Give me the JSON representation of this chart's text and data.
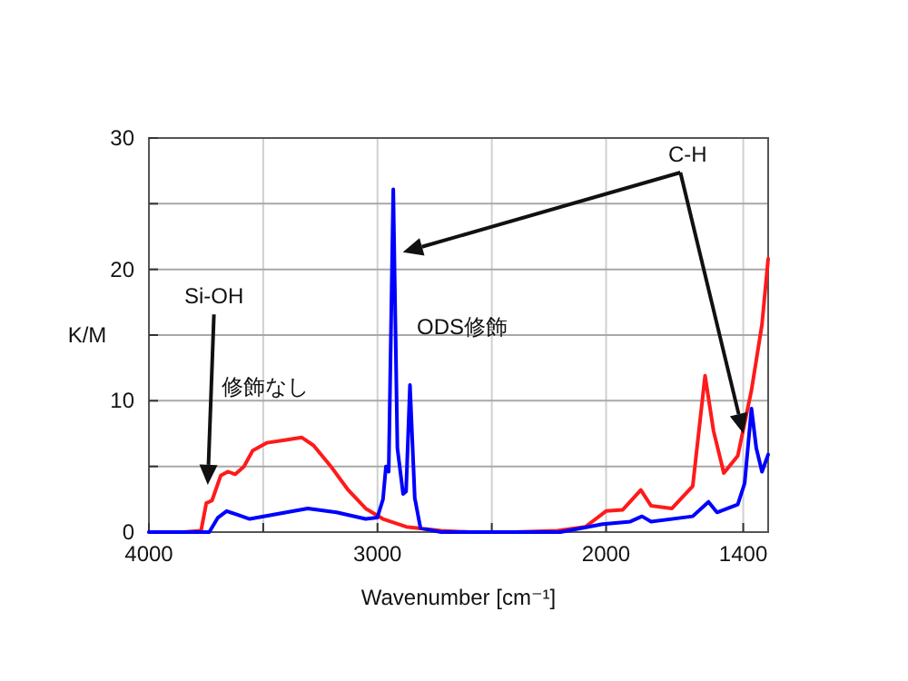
{
  "chart_data": {
    "type": "line",
    "xlabel": "Wavenumber [cm⁻¹]",
    "ylabel": "K/M",
    "xlim": [
      4000,
      1291
    ],
    "xticks": [
      4000,
      {
        "value": 3500,
        "label": null
      },
      3000,
      {
        "value": 2500,
        "label": null
      },
      2000,
      1400
    ],
    "ylim": [
      0,
      30
    ],
    "yticks": [
      0,
      {
        "value": 5,
        "label": null
      },
      10,
      {
        "value": 15,
        "label": null
      },
      20,
      {
        "value": 25,
        "label": null
      },
      30
    ],
    "grid": true,
    "marker": "none",
    "line_style": "solid",
    "series": [
      {
        "name": "修飾なし",
        "color": "#ff1a1a",
        "x": [
          4000,
          3850,
          3772,
          3749,
          3724,
          3686,
          3655,
          3622,
          3584,
          3546,
          3483,
          3407,
          3331,
          3280,
          3204,
          3128,
          3052,
          2976,
          2874,
          2722,
          2593,
          2400,
          2213,
          2091,
          2000,
          1927,
          1848,
          1803,
          1712,
          1621,
          1567,
          1530,
          1485,
          1424,
          1364,
          1318,
          1291
        ],
        "values": [
          0,
          0,
          0.1,
          2.2,
          2.4,
          4.3,
          4.6,
          4.4,
          5.0,
          6.2,
          6.8,
          7.0,
          7.2,
          6.6,
          5.0,
          3.2,
          1.8,
          1.0,
          0.4,
          0.1,
          0,
          0,
          0.1,
          0.4,
          1.6,
          1.7,
          3.2,
          2.0,
          1.8,
          3.5,
          11.9,
          7.7,
          4.5,
          5.8,
          10.8,
          15.8,
          20.8
        ]
      },
      {
        "name": "ODS修飾",
        "color": "#0000ff",
        "x": [
          4000,
          3800,
          3736,
          3698,
          3660,
          3610,
          3559,
          3432,
          3305,
          3179,
          3052,
          3001,
          2976,
          2963,
          2951,
          2931,
          2913,
          2888,
          2875,
          2858,
          2837,
          2812,
          2722,
          2500,
          2200,
          2015,
          1894,
          1843,
          1803,
          1621,
          1552,
          1515,
          1424,
          1394,
          1364,
          1343,
          1318,
          1291
        ],
        "values": [
          0,
          0,
          0,
          1.1,
          1.6,
          1.3,
          1.0,
          1.4,
          1.8,
          1.5,
          1.0,
          1.1,
          2.5,
          5.0,
          4.6,
          26.1,
          6.4,
          2.9,
          3.1,
          11.2,
          2.6,
          0.3,
          0,
          0,
          0,
          0.6,
          0.8,
          1.2,
          0.8,
          1.2,
          2.3,
          1.5,
          2.1,
          3.7,
          9.4,
          6.4,
          4.6,
          5.9
        ]
      }
    ],
    "annotations": [
      "Si-OH",
      "C-H"
    ]
  }
}
